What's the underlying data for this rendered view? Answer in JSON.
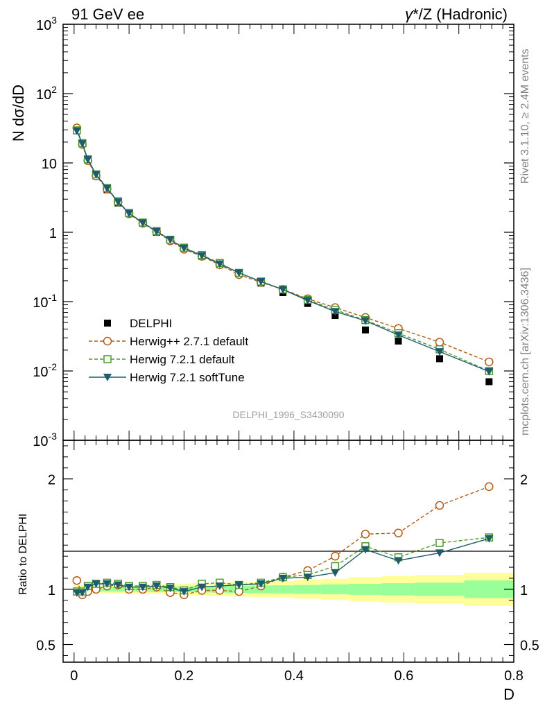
{
  "header": {
    "left_label": "91 GeV ee",
    "right_label_gamma": "γ",
    "right_label_rest": "*/Z (Hadronic)"
  },
  "side_labels": {
    "rivet": "Rivet 3.1.10, ≥ 2.4M events",
    "mcplots": "mcplots.cern.ch [arXiv:1306.3436]"
  },
  "watermark": "DELPHI_1996_S3430090",
  "colors": {
    "data": "#000000",
    "herwigpp": "#b25a14",
    "herwig_default": "#4c9a2a",
    "herwig_softtune": "#1f5b6e",
    "band_inner": "#99ff99",
    "band_outer": "#ffff99"
  },
  "chart_data": [
    {
      "type": "scatter",
      "panel": "main",
      "ylabel": "N dσ/dD",
      "yscale": "log",
      "xlim": [
        -0.02,
        0.8
      ],
      "ylim": [
        0.001,
        1000
      ],
      "ytick_labels": [
        "10^-3",
        "10^-2",
        "10^-1",
        "1",
        "10",
        "10^2",
        "10^3"
      ],
      "x": [
        0.005,
        0.015,
        0.025,
        0.04,
        0.06,
        0.08,
        0.1,
        0.125,
        0.15,
        0.175,
        0.2,
        0.2325,
        0.265,
        0.3,
        0.34,
        0.38,
        0.425,
        0.475,
        0.53,
        0.59,
        0.665,
        0.755
      ],
      "legend": {
        "placement": "lower-left"
      },
      "series": [
        {
          "name": "DELPHI",
          "marker": "filled-square",
          "values": [
            30,
            19.5,
            11,
            6.5,
            4.1,
            2.65,
            1.85,
            1.35,
            1.0,
            0.77,
            0.6,
            0.45,
            0.34,
            0.25,
            0.185,
            0.135,
            0.094,
            0.063,
            0.039,
            0.027,
            0.015,
            0.007
          ]
        },
        {
          "name": "Herwig++ 2.7.1 default",
          "marker": "open-circle",
          "line": "dashed",
          "values": [
            32,
            18.5,
            10.8,
            6.5,
            4.2,
            2.75,
            1.85,
            1.35,
            1.02,
            0.75,
            0.57,
            0.45,
            0.34,
            0.245,
            0.19,
            0.15,
            0.11,
            0.082,
            0.059,
            0.041,
            0.026,
            0.0135
          ]
        },
        {
          "name": "Herwig 7.2.1 default",
          "marker": "open-square",
          "line": "dashed",
          "values": [
            29.5,
            19.3,
            11.3,
            6.85,
            4.35,
            2.8,
            1.9,
            1.38,
            1.04,
            0.78,
            0.6,
            0.47,
            0.36,
            0.26,
            0.195,
            0.15,
            0.106,
            0.076,
            0.054,
            0.035,
            0.0205,
            0.01
          ]
        },
        {
          "name": "Herwig 7.2.1 softTune",
          "marker": "filled-triangle-down",
          "line": "solid",
          "values": [
            29,
            19.0,
            11.2,
            6.8,
            4.3,
            2.75,
            1.88,
            1.37,
            1.03,
            0.78,
            0.59,
            0.46,
            0.35,
            0.26,
            0.195,
            0.149,
            0.104,
            0.072,
            0.053,
            0.033,
            0.019,
            0.0098
          ]
        }
      ]
    },
    {
      "type": "scatter",
      "panel": "ratio",
      "ylabel": "Ratio to DELPHI",
      "xlabel": "D",
      "xlim": [
        -0.02,
        0.8
      ],
      "ylim": [
        0.34,
        2.35
      ],
      "xticks": [
        0,
        0.2,
        0.4,
        0.6,
        0.8
      ],
      "xtick_labels": [
        "0",
        "0.2",
        "0.4",
        "0.6",
        "0.8"
      ],
      "yticks": [
        0.5,
        1,
        2
      ],
      "ytick_labels": [
        "0.5",
        "1",
        "2"
      ],
      "x": [
        0.005,
        0.015,
        0.025,
        0.04,
        0.06,
        0.08,
        0.1,
        0.125,
        0.15,
        0.175,
        0.2,
        0.2325,
        0.265,
        0.3,
        0.34,
        0.38,
        0.425,
        0.475,
        0.53,
        0.59,
        0.665,
        0.755
      ],
      "uncertainty_bands": {
        "bin_edges": [
          0.0,
          0.01,
          0.02,
          0.03,
          0.05,
          0.07,
          0.09,
          0.11,
          0.14,
          0.16,
          0.19,
          0.215,
          0.25,
          0.28,
          0.32,
          0.36,
          0.4,
          0.45,
          0.5,
          0.56,
          0.62,
          0.71,
          0.8
        ],
        "inner_halfwidth": [
          0.02,
          0.02,
          0.02,
          0.02,
          0.02,
          0.02,
          0.022,
          0.022,
          0.024,
          0.025,
          0.026,
          0.028,
          0.03,
          0.032,
          0.034,
          0.036,
          0.04,
          0.045,
          0.05,
          0.055,
          0.06,
          0.08
        ],
        "outer_halfwidth": [
          0.035,
          0.035,
          0.035,
          0.035,
          0.035,
          0.035,
          0.038,
          0.04,
          0.042,
          0.045,
          0.05,
          0.055,
          0.06,
          0.065,
          0.07,
          0.075,
          0.085,
          0.095,
          0.11,
          0.12,
          0.13,
          0.15
        ]
      },
      "series": [
        {
          "name": "Herwig++ 2.7.1 default",
          "values": [
            1.08,
            0.95,
            0.98,
            1.0,
            1.03,
            1.04,
            1.0,
            1.0,
            1.02,
            0.97,
            0.95,
            0.99,
            0.99,
            0.98,
            1.03,
            1.11,
            1.17,
            1.3,
            1.5,
            1.51,
            1.76,
            1.93
          ]
        },
        {
          "name": "Herwig 7.2.1 default",
          "values": [
            0.98,
            0.98,
            1.03,
            1.05,
            1.06,
            1.05,
            1.03,
            1.03,
            1.04,
            1.02,
            0.99,
            1.05,
            1.06,
            1.04,
            1.06,
            1.11,
            1.13,
            1.21,
            1.39,
            1.29,
            1.42,
            1.47
          ]
        },
        {
          "name": "Herwig 7.2.1 softTune",
          "values": [
            0.97,
            0.97,
            1.02,
            1.05,
            1.05,
            1.04,
            1.02,
            1.02,
            1.03,
            1.01,
            0.98,
            1.02,
            1.03,
            1.04,
            1.05,
            1.1,
            1.11,
            1.15,
            1.36,
            1.26,
            1.33,
            1.46
          ]
        }
      ]
    }
  ]
}
